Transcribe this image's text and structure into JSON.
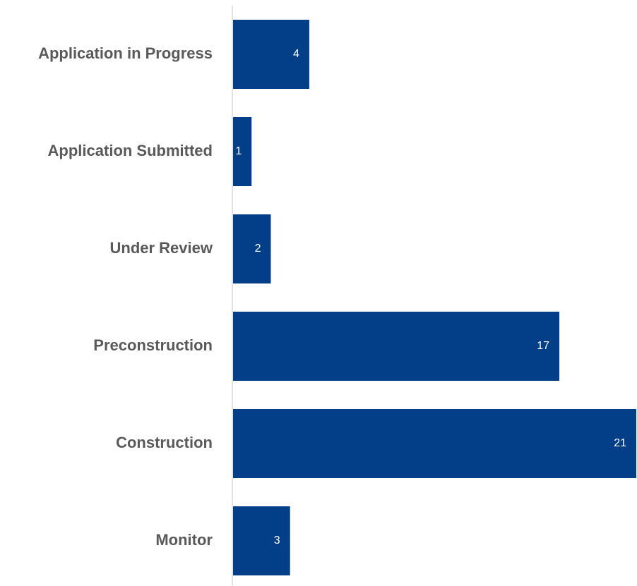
{
  "chart_data": {
    "type": "bar",
    "orientation": "horizontal",
    "categories": [
      "Application in Progress",
      "Application Submitted",
      "Under Review",
      "Preconstruction",
      "Construction",
      "Monitor"
    ],
    "values": [
      4,
      1,
      2,
      17,
      21,
      3
    ],
    "color": "#023f88"
  }
}
